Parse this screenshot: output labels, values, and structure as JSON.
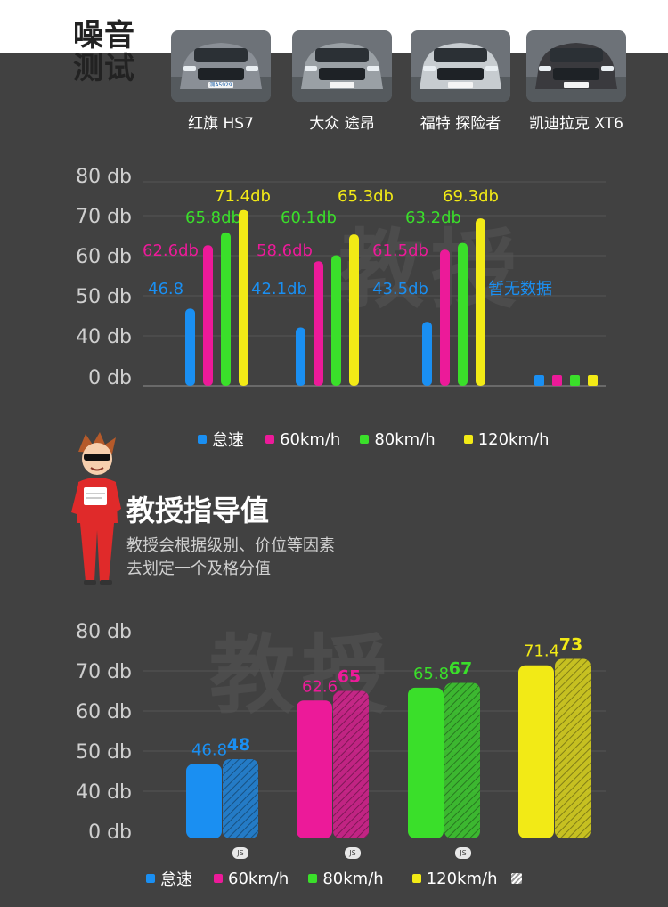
{
  "header": {
    "title_line1": "噪音",
    "title_line2": "测试"
  },
  "cars": [
    {
      "name": "红旗 HS7",
      "plate": "测A5929",
      "color": "#8a8f96"
    },
    {
      "name": "大众 途昂",
      "plate": "",
      "color": "#9aa0a5"
    },
    {
      "name": "福特 探险者",
      "plate": "",
      "color": "#c7ccd0"
    },
    {
      "name": "凯迪拉克 XT6",
      "plate": "",
      "color": "#3a3a3e"
    }
  ],
  "legend": [
    {
      "label": "怠速",
      "color": "#1a8ff2"
    },
    {
      "label": "60km/h",
      "color": "#ec1a99"
    },
    {
      "label": "80km/h",
      "color": "#3adf2a"
    },
    {
      "label": "120km/h",
      "color": "#f2ea16"
    }
  ],
  "chart_data": [
    {
      "type": "bar",
      "categories": [
        "红旗 HS7",
        "大众 途昂",
        "福特 探险者",
        "凯迪拉克 XT6"
      ],
      "y_ticks": [
        "80 db",
        "70 db",
        "60 db",
        "50 db",
        "40 db",
        "0 db"
      ],
      "series": [
        {
          "name": "怠速",
          "color": "#1a8ff2",
          "values": [
            46.8,
            42.1,
            43.5,
            null
          ],
          "labels": [
            "46.8",
            "42.1db",
            "43.5db",
            ""
          ]
        },
        {
          "name": "60km/h",
          "color": "#ec1a99",
          "values": [
            62.6,
            58.6,
            61.5,
            null
          ],
          "labels": [
            "62.6db",
            "58.6db",
            "61.5db",
            ""
          ]
        },
        {
          "name": "80km/h",
          "color": "#3adf2a",
          "values": [
            65.8,
            60.1,
            63.2,
            null
          ],
          "labels": [
            "65.8db",
            "60.1db",
            "63.2db",
            ""
          ]
        },
        {
          "name": "120km/h",
          "color": "#f2ea16",
          "values": [
            71.4,
            65.3,
            69.3,
            null
          ],
          "labels": [
            "71.4db",
            "65.3db",
            "69.3db",
            ""
          ]
        }
      ],
      "no_data_label": "暂无数据",
      "no_data_category": "凯迪拉克 XT6"
    },
    {
      "type": "bar",
      "categories": [
        "怠速",
        "60km/h",
        "80km/h",
        "120km/h"
      ],
      "y_ticks": [
        "80 db",
        "70 db",
        "60 db",
        "50 db",
        "40 db",
        "0 db"
      ],
      "pairs": [
        {
          "measured": 46.8,
          "guide": 48,
          "color": "#1a8ff2"
        },
        {
          "measured": 62.6,
          "guide": 65,
          "color": "#ec1a99"
        },
        {
          "measured": 65.8,
          "guide": 67,
          "color": "#3adf2a"
        },
        {
          "measured": 71.4,
          "guide": 73,
          "color": "#f2ea16"
        }
      ]
    }
  ],
  "professor": {
    "title": "教授指导值",
    "desc_line1": "教授会根据级别、价位等因素",
    "desc_line2": "去划定一个及格分值"
  },
  "watermark": "教授",
  "js_badge": "JS"
}
